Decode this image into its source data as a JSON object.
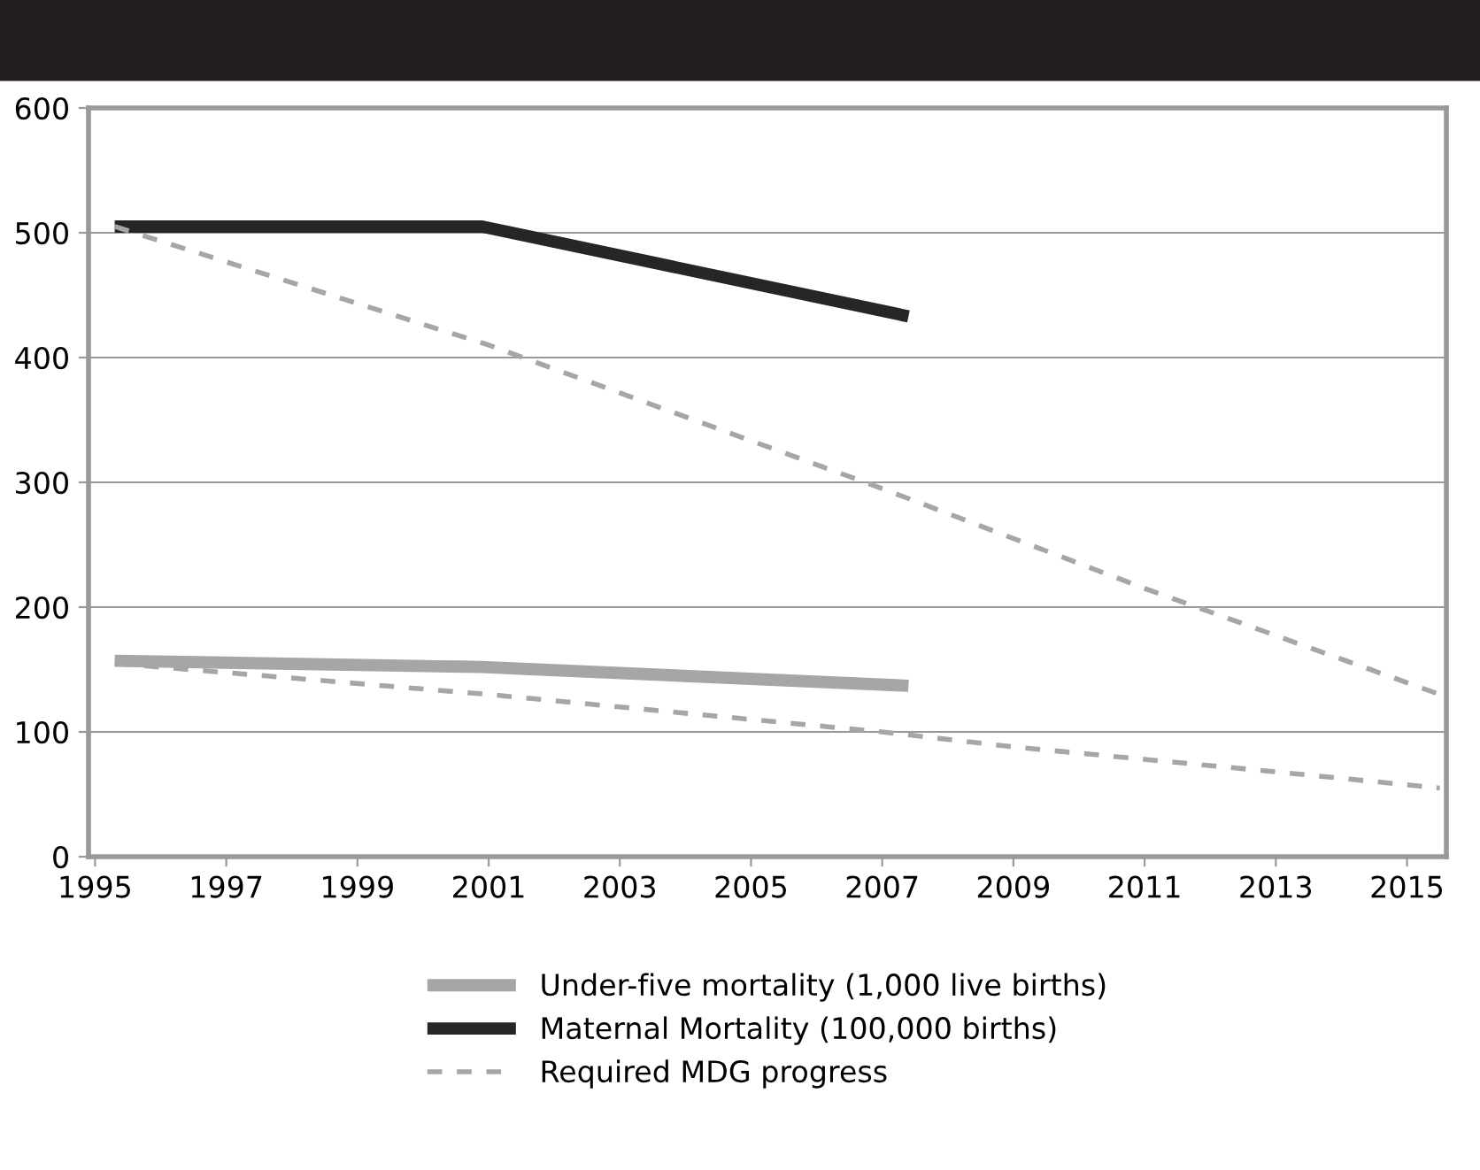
{
  "chart_data": {
    "type": "line",
    "xlim": [
      1994.9,
      2015.6
    ],
    "ylim": [
      0,
      600
    ],
    "xticks": [
      1995,
      1997,
      1999,
      2001,
      2003,
      2005,
      2007,
      2009,
      2011,
      2013,
      2015
    ],
    "yticks": [
      0,
      100,
      200,
      300,
      400,
      500,
      600
    ],
    "grid": "y",
    "legend": "bottom",
    "line_style": "solid",
    "marker": "none",
    "series": [
      {
        "name": "Under-five mortality (1,000 live births)",
        "color": "#a6a6a6",
        "x": [
          1995.3,
          2000.9,
          2007.4
        ],
        "values": [
          157,
          152,
          137
        ]
      },
      {
        "name": "Maternal Mortality (100,000 births)",
        "color": "#262626",
        "x": [
          1995.3,
          2000.9,
          2007.4
        ],
        "values": [
          505,
          505,
          433
        ]
      },
      {
        "name": "Required MDG progress",
        "color": "#a6a6a6",
        "line_style": "dashed",
        "x": [
          1995.3,
          2001,
          2007,
          2011,
          2015.5
        ],
        "values": [
          505,
          410,
          295,
          215,
          130
        ]
      },
      {
        "color": "#a6a6a6",
        "line_style": "dashed",
        "x": [
          1995.3,
          2001,
          2007,
          2009,
          2011,
          2013,
          2015.5
        ],
        "values": [
          155,
          130,
          100,
          88,
          78,
          68,
          55
        ]
      }
    ]
  }
}
